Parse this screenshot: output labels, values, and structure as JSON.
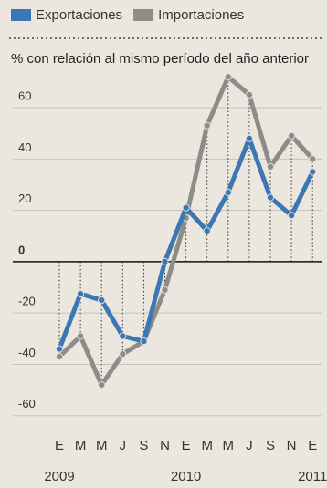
{
  "chart_data": {
    "type": "line",
    "ylabel": "% con relación al mismo período del año anterior",
    "categories": [
      "E",
      "M",
      "M",
      "J",
      "S",
      "N",
      "E",
      "M",
      "M",
      "J",
      "S",
      "N",
      "E"
    ],
    "years": [
      "2009",
      null,
      null,
      null,
      null,
      null,
      "2010",
      null,
      null,
      null,
      null,
      null,
      "2011"
    ],
    "series": [
      {
        "name": "Exportaciones",
        "color": "#3b77b3",
        "values": [
          -34,
          -12.5,
          -15,
          -29,
          -31,
          0,
          21,
          12,
          27,
          48,
          25,
          18,
          35
        ]
      },
      {
        "name": "Importaciones",
        "color": "#8c8c88",
        "values": [
          -37,
          -29,
          -48,
          -36,
          -31,
          -11,
          17,
          53,
          72,
          65,
          37,
          49,
          40
        ]
      }
    ],
    "ylim": [
      -64,
      76
    ],
    "yticks": [
      -60,
      -40,
      -20,
      0,
      20,
      40,
      60
    ],
    "grid": true,
    "legend": "top"
  }
}
